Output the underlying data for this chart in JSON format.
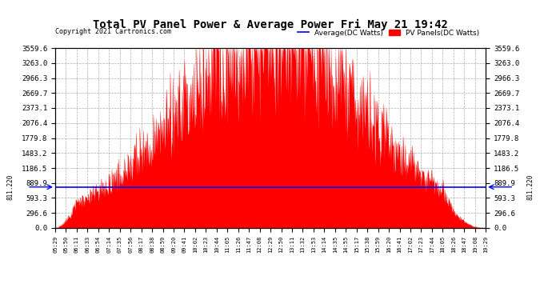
{
  "title": "Total PV Panel Power & Average Power Fri May 21 19:42",
  "copyright": "Copyright 2021 Cartronics.com",
  "legend_avg": "Average(DC Watts)",
  "legend_pv": "PV Panels(DC Watts)",
  "avg_color": "blue",
  "pv_color": "red",
  "horizontal_line_value": 811.22,
  "horizontal_line_label": "811.220",
  "ymax": 3559.6,
  "ymin": 0.0,
  "yticks": [
    0.0,
    296.6,
    593.3,
    889.9,
    1186.5,
    1483.2,
    1779.8,
    2076.4,
    2373.1,
    2669.7,
    2966.3,
    3263.0,
    3559.6
  ],
  "bg_color": "#ffffff",
  "plot_bg_color": "#ffffff",
  "grid_color": "#999999",
  "xtick_labels": [
    "05:29",
    "05:50",
    "06:11",
    "06:33",
    "06:54",
    "07:14",
    "07:35",
    "07:56",
    "08:17",
    "08:38",
    "08:59",
    "09:20",
    "09:41",
    "10:02",
    "10:23",
    "10:44",
    "11:05",
    "11:26",
    "11:47",
    "12:08",
    "12:29",
    "12:50",
    "13:11",
    "13:32",
    "13:53",
    "14:14",
    "14:35",
    "14:55",
    "15:17",
    "15:38",
    "15:59",
    "16:20",
    "16:41",
    "17:02",
    "17:23",
    "17:44",
    "18:05",
    "18:26",
    "18:47",
    "19:08",
    "19:29"
  ]
}
